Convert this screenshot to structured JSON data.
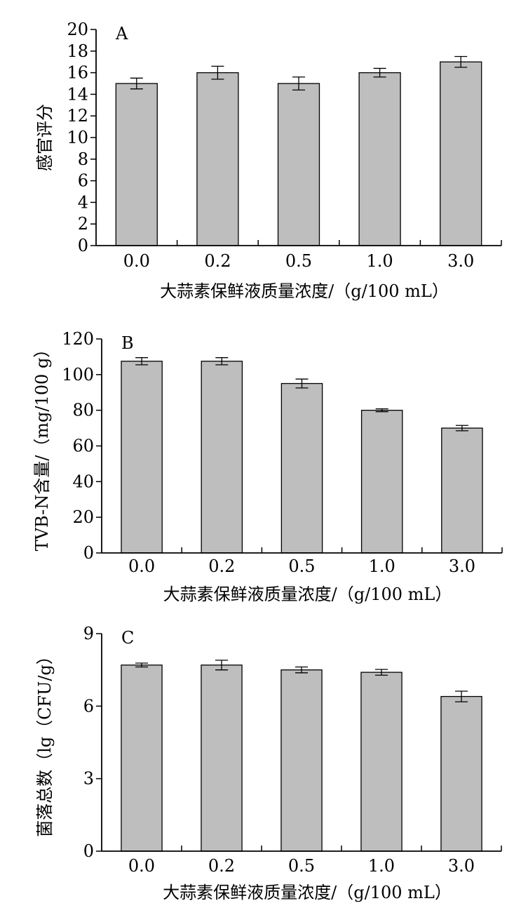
{
  "colors": {
    "bar_fill": "#bebebe",
    "bar_stroke": "#000000",
    "axis": "#000000"
  },
  "chart_data": [
    {
      "type": "bar",
      "panel_label": "A",
      "categories": [
        "0.0",
        "0.2",
        "0.5",
        "1.0",
        "3.0"
      ],
      "values": [
        15.0,
        16.0,
        15.0,
        16.0,
        17.0
      ],
      "errors": [
        0.5,
        0.6,
        0.6,
        0.4,
        0.5
      ],
      "xlabel": "大蒜素保鲜液质量浓度/（g/100 mL）",
      "ylabel": "感官评分",
      "ylim": [
        0,
        20
      ],
      "yticks": [
        "0",
        "2",
        "4",
        "6",
        "8",
        "10",
        "12",
        "14",
        "16",
        "18",
        "20"
      ],
      "grid": false
    },
    {
      "type": "bar",
      "panel_label": "B",
      "categories": [
        "0.0",
        "0.2",
        "0.5",
        "1.0",
        "3.0"
      ],
      "values": [
        107.5,
        107.5,
        95.0,
        80.0,
        70.0
      ],
      "errors": [
        2.0,
        2.0,
        2.5,
        0.8,
        1.5
      ],
      "xlabel": "大蒜素保鲜液质量浓度/（g/100 mL）",
      "ylabel": "TVB-N含量/（mg/100 g）",
      "ylim": [
        0,
        120
      ],
      "yticks": [
        "0",
        "20",
        "40",
        "60",
        "80",
        "100",
        "120"
      ],
      "grid": false
    },
    {
      "type": "bar",
      "panel_label": "C",
      "categories": [
        "0.0",
        "0.2",
        "0.5",
        "1.0",
        "3.0"
      ],
      "values": [
        7.7,
        7.7,
        7.5,
        7.4,
        6.4
      ],
      "errors": [
        0.08,
        0.2,
        0.12,
        0.12,
        0.22
      ],
      "xlabel": "大蒜素保鲜液质量浓度/（g/100 mL）",
      "ylabel": "菌落总数（lg（CFU/g）",
      "ylim": [
        0,
        9
      ],
      "yticks": [
        "0",
        "3",
        "6",
        "9"
      ],
      "grid": false
    }
  ]
}
